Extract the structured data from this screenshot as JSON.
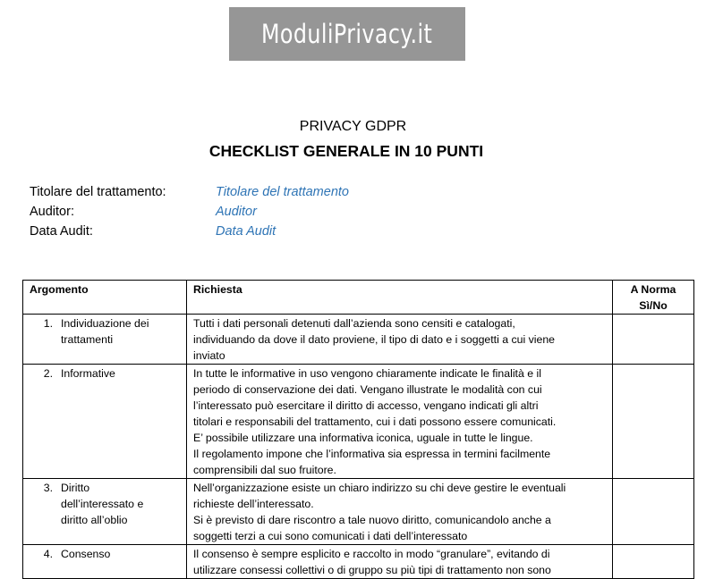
{
  "logo": {
    "text": "ModuliPrivacy.it"
  },
  "header": {
    "subtitle": "PRIVACY GDPR",
    "title": "CHECKLIST GENERALE IN 10 PUNTI"
  },
  "meta": [
    {
      "label": "Titolare del trattamento:",
      "value": "Titolare del trattamento"
    },
    {
      "label": "Auditor:",
      "value": "Auditor"
    },
    {
      "label": "Data Audit:",
      "value": "Data Audit"
    }
  ],
  "table": {
    "headers": [
      "Argomento",
      "Richiesta",
      "A Norma Sì/No"
    ],
    "rows": [
      {
        "num": "1.",
        "argomento": [
          "Individuazione dei",
          "trattamenti"
        ],
        "richiesta": [
          "Tutti i dati personali detenuti dall’azienda sono censiti e catalogati,",
          "individuando da dove il dato proviene, il tipo di dato e i soggetti a cui viene",
          "inviato"
        ],
        "a_norma": ""
      },
      {
        "num": "2.",
        "argomento": [
          "Informative"
        ],
        "richiesta": [
          "In tutte le informative in uso vengono chiaramente indicate le finalità e il",
          "periodo di conservazione dei dati. Vengano illustrate le modalità con cui",
          "l’interessato può  esercitare il diritto di accesso, vengano indicati gli altri",
          "titolari e responsabili del trattamento, cui i dati possono essere comunicati.",
          "E’ possibile utilizzare una informativa iconica, uguale in tutte le lingue.",
          "Il regolamento impone che l’informativa sia espressa in termini facilmente",
          "comprensibili dal suo fruitore."
        ],
        "a_norma": ""
      },
      {
        "num": "3.",
        "argomento": [
          "Diritto",
          "dell’interessato e",
          "diritto all’oblio"
        ],
        "richiesta": [
          "Nell’organizzazione esiste un chiaro indirizzo su chi deve gestire le eventuali",
          "richieste dell’interessato.",
          "Si è previsto di dare riscontro a tale nuovo diritto, comunicandolo anche a",
          "soggetti terzi a cui sono comunicati i dati dell’interessato"
        ],
        "a_norma": ""
      },
      {
        "num": "4.",
        "argomento": [
          "Consenso"
        ],
        "richiesta": [
          "Il consenso è sempre esplicito e raccolto in modo “granulare”, evitando di",
          "utilizzare consessi collettivi o di gruppo su più tipi di trattamento non sono"
        ],
        "a_norma": ""
      }
    ]
  }
}
